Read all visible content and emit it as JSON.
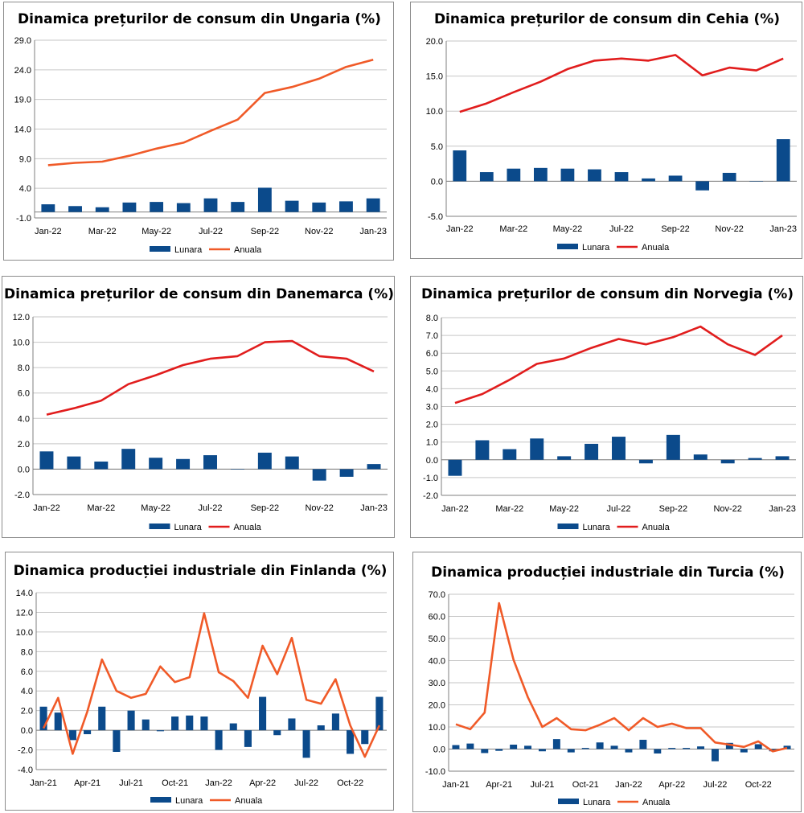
{
  "chart_data": [
    {
      "type": "bar+line",
      "title": "Dinamica prețurilor de consum din Ungaria (%)",
      "legend": [
        "Lunara",
        "Anuala"
      ],
      "legend_position": "bottom",
      "colors": {
        "bar": "#0b4a8b",
        "line": "#f05a28"
      },
      "ylim": [
        -1.0,
        29.0
      ],
      "yticks": [
        -1.0,
        4.0,
        9.0,
        14.0,
        19.0,
        24.0,
        29.0
      ],
      "ytick_labels": [
        "-1.0",
        "4.0",
        "9.0",
        "14.0",
        "19.0",
        "24.0",
        "29.0"
      ],
      "categories": [
        "Jan-22",
        "Feb-22",
        "Mar-22",
        "Apr-22",
        "May-22",
        "Jun-22",
        "Jul-22",
        "Aug-22",
        "Sep-22",
        "Oct-22",
        "Nov-22",
        "Dec-22",
        "Jan-23"
      ],
      "xtick_labels": [
        "Jan-22",
        "",
        "Mar-22",
        "",
        "May-22",
        "",
        "Jul-22",
        "",
        "Sep-22",
        "",
        "Nov-22",
        "",
        "Jan-23"
      ],
      "series": [
        {
          "name": "Lunara",
          "kind": "bar",
          "values": [
            1.3,
            1.0,
            0.8,
            1.6,
            1.7,
            1.5,
            2.3,
            1.7,
            4.1,
            1.9,
            1.6,
            1.8,
            2.3
          ]
        },
        {
          "name": "Anuala",
          "kind": "line",
          "values": [
            7.9,
            8.3,
            8.5,
            9.5,
            10.7,
            11.7,
            13.7,
            15.6,
            20.1,
            21.1,
            22.5,
            24.5,
            25.7
          ]
        }
      ]
    },
    {
      "type": "bar+line",
      "title": "Dinamica prețurilor de consum din Cehia (%)",
      "legend": [
        "Lunara",
        "Anuala"
      ],
      "legend_position": "bottom",
      "colors": {
        "bar": "#0b4a8b",
        "line": "#e11d1d"
      },
      "ylim": [
        -5.0,
        20.0
      ],
      "yticks": [
        -5.0,
        0.0,
        5.0,
        10.0,
        15.0,
        20.0
      ],
      "ytick_labels": [
        "-5.0",
        "0.0",
        "5.0",
        "10.0",
        "15.0",
        "20.0"
      ],
      "categories": [
        "Jan-22",
        "Feb-22",
        "Mar-22",
        "Apr-22",
        "May-22",
        "Jun-22",
        "Jul-22",
        "Aug-22",
        "Sep-22",
        "Oct-22",
        "Nov-22",
        "Dec-22",
        "Jan-23"
      ],
      "xtick_labels": [
        "Jan-22",
        "",
        "Mar-22",
        "",
        "May-22",
        "",
        "Jul-22",
        "",
        "Sep-22",
        "",
        "Nov-22",
        "",
        "Jan-23"
      ],
      "series": [
        {
          "name": "Lunara",
          "kind": "bar",
          "values": [
            4.4,
            1.3,
            1.8,
            1.9,
            1.8,
            1.7,
            1.3,
            0.4,
            0.8,
            -1.3,
            1.2,
            0.0,
            6.0
          ]
        },
        {
          "name": "Anuala",
          "kind": "line",
          "values": [
            9.9,
            11.1,
            12.7,
            14.2,
            16.0,
            17.2,
            17.5,
            17.2,
            18.0,
            15.1,
            16.2,
            15.8,
            17.5
          ]
        }
      ]
    },
    {
      "type": "bar+line",
      "title": "Dinamica prețurilor de consum din Danemarca (%)",
      "legend": [
        "Lunara",
        "Anuala"
      ],
      "legend_position": "bottom",
      "colors": {
        "bar": "#0b4a8b",
        "line": "#e11d1d"
      },
      "ylim": [
        -2.0,
        12.0
      ],
      "yticks": [
        -2.0,
        0.0,
        2.0,
        4.0,
        6.0,
        8.0,
        10.0,
        12.0
      ],
      "ytick_labels": [
        "-2.0",
        "0.0",
        "2.0",
        "4.0",
        "6.0",
        "8.0",
        "10.0",
        "12.0"
      ],
      "categories": [
        "Jan-22",
        "Feb-22",
        "Mar-22",
        "Apr-22",
        "May-22",
        "Jun-22",
        "Jul-22",
        "Aug-22",
        "Sep-22",
        "Oct-22",
        "Nov-22",
        "Dec-22",
        "Jan-23"
      ],
      "xtick_labels": [
        "Jan-22",
        "",
        "Mar-22",
        "",
        "May-22",
        "",
        "Jul-22",
        "",
        "Sep-22",
        "",
        "Nov-22",
        "",
        "Jan-23"
      ],
      "series": [
        {
          "name": "Lunara",
          "kind": "bar",
          "values": [
            1.4,
            1.0,
            0.6,
            1.6,
            0.9,
            0.8,
            1.1,
            0.0,
            1.3,
            1.0,
            -0.9,
            -0.6,
            0.4
          ]
        },
        {
          "name": "Anuala",
          "kind": "line",
          "values": [
            4.3,
            4.8,
            5.4,
            6.7,
            7.4,
            8.2,
            8.7,
            8.9,
            10.0,
            10.1,
            8.9,
            8.7,
            7.7
          ]
        }
      ]
    },
    {
      "type": "bar+line",
      "title": "Dinamica prețurilor de consum din Norvegia (%)",
      "legend": [
        "Lunara",
        "Anuala"
      ],
      "legend_position": "bottom",
      "colors": {
        "bar": "#0b4a8b",
        "line": "#e11d1d"
      },
      "ylim": [
        -2.0,
        8.0
      ],
      "yticks": [
        -2.0,
        -1.0,
        0.0,
        1.0,
        2.0,
        3.0,
        4.0,
        5.0,
        6.0,
        7.0,
        8.0
      ],
      "ytick_labels": [
        "-2.0",
        "-1.0",
        "0.0",
        "1.0",
        "2.0",
        "3.0",
        "4.0",
        "5.0",
        "6.0",
        "7.0",
        "8.0"
      ],
      "categories": [
        "Jan-22",
        "Feb-22",
        "Mar-22",
        "Apr-22",
        "May-22",
        "Jun-22",
        "Jul-22",
        "Aug-22",
        "Sep-22",
        "Oct-22",
        "Nov-22",
        "Dec-22",
        "Jan-23"
      ],
      "xtick_labels": [
        "Jan-22",
        "",
        "Mar-22",
        "",
        "May-22",
        "",
        "Jul-22",
        "",
        "Sep-22",
        "",
        "Nov-22",
        "",
        "Jan-23"
      ],
      "series": [
        {
          "name": "Lunara",
          "kind": "bar",
          "values": [
            -0.9,
            1.1,
            0.6,
            1.2,
            0.2,
            0.9,
            1.3,
            -0.2,
            1.4,
            0.3,
            -0.2,
            0.1,
            0.2
          ]
        },
        {
          "name": "Anuala",
          "kind": "line",
          "values": [
            3.2,
            3.7,
            4.5,
            5.4,
            5.7,
            6.3,
            6.8,
            6.5,
            6.9,
            7.5,
            6.5,
            5.9,
            7.0
          ]
        }
      ]
    },
    {
      "type": "bar+line",
      "title": "Dinamica producției industriale din Finlanda (%)",
      "legend": [
        "Lunara",
        "Anuala"
      ],
      "legend_position": "bottom",
      "colors": {
        "bar": "#0b4a8b",
        "line": "#f05a28"
      },
      "ylim": [
        -4.0,
        14.0
      ],
      "yticks": [
        -4.0,
        -2.0,
        0.0,
        2.0,
        4.0,
        6.0,
        8.0,
        10.0,
        12.0,
        14.0
      ],
      "ytick_labels": [
        "-4.0",
        "-2.0",
        "0.0",
        "2.0",
        "4.0",
        "6.0",
        "8.0",
        "10.0",
        "12.0",
        "14.0"
      ],
      "categories": [
        "Jan-21",
        "Feb-21",
        "Mar-21",
        "Apr-21",
        "May-21",
        "Jun-21",
        "Jul-21",
        "Aug-21",
        "Sep-21",
        "Oct-21",
        "Nov-21",
        "Dec-21",
        "Jan-22",
        "Feb-22",
        "Mar-22",
        "Apr-22",
        "May-22",
        "Jun-22",
        "Jul-22",
        "Aug-22",
        "Sep-22",
        "Oct-22",
        "Nov-22",
        "Dec-22"
      ],
      "xtick_labels": [
        "Jan-21",
        "",
        "",
        "Apr-21",
        "",
        "",
        "Jul-21",
        "",
        "",
        "Oct-21",
        "",
        "",
        "Jan-22",
        "",
        "",
        "Apr-22",
        "",
        "",
        "Jul-22",
        "",
        "",
        "Oct-22",
        "",
        ""
      ],
      "series": [
        {
          "name": "Lunara",
          "kind": "bar",
          "values": [
            2.4,
            1.8,
            -1.0,
            -0.4,
            2.4,
            -2.2,
            2.0,
            1.1,
            -0.1,
            1.4,
            1.5,
            1.4,
            -2.0,
            0.7,
            -1.7,
            3.4,
            -0.5,
            1.2,
            -2.8,
            0.5,
            1.7,
            -2.4,
            -1.4,
            3.4
          ]
        },
        {
          "name": "Anuala",
          "kind": "line",
          "values": [
            0.2,
            3.3,
            -2.4,
            1.9,
            7.2,
            4.0,
            3.3,
            3.7,
            6.5,
            4.9,
            5.4,
            11.9,
            5.9,
            5.0,
            3.3,
            8.6,
            5.7,
            9.4,
            3.1,
            2.7,
            5.2,
            0.5,
            -2.7,
            0.5
          ]
        }
      ]
    },
    {
      "type": "bar+line",
      "title": "Dinamica producției industriale din Turcia (%)",
      "legend": [
        "Lunara",
        "Anuala"
      ],
      "legend_position": "bottom",
      "colors": {
        "bar": "#0b4a8b",
        "line": "#f05a28"
      },
      "ylim": [
        -10.0,
        70.0
      ],
      "yticks": [
        -10.0,
        0.0,
        10.0,
        20.0,
        30.0,
        40.0,
        50.0,
        60.0,
        70.0
      ],
      "ytick_labels": [
        "-10.0",
        "0.0",
        "10.0",
        "20.0",
        "30.0",
        "40.0",
        "50.0",
        "60.0",
        "70.0"
      ],
      "categories": [
        "Jan-21",
        "Feb-21",
        "Mar-21",
        "Apr-21",
        "May-21",
        "Jun-21",
        "Jul-21",
        "Aug-21",
        "Sep-21",
        "Oct-21",
        "Nov-21",
        "Dec-21",
        "Jan-22",
        "Feb-22",
        "Mar-22",
        "Apr-22",
        "May-22",
        "Jun-22",
        "Jul-22",
        "Aug-22",
        "Sep-22",
        "Oct-22",
        "Nov-22",
        "Dec-22"
      ],
      "xtick_labels": [
        "Jan-21",
        "",
        "",
        "Apr-21",
        "",
        "",
        "Jul-21",
        "",
        "",
        "Oct-21",
        "",
        "",
        "Jan-22",
        "",
        "",
        "Apr-22",
        "",
        "",
        "Jul-22",
        "",
        "",
        "Oct-22",
        "",
        ""
      ],
      "series": [
        {
          "name": "Lunara",
          "kind": "bar",
          "values": [
            1.8,
            2.5,
            -1.8,
            -0.8,
            2.0,
            1.5,
            -1.0,
            4.5,
            -1.5,
            0.5,
            3.0,
            1.5,
            -1.5,
            4.2,
            -2.0,
            0.5,
            0.5,
            1.2,
            -5.5,
            2.8,
            -1.5,
            2.2,
            -1.0,
            1.5
          ]
        },
        {
          "name": "Anuala",
          "kind": "line",
          "values": [
            11.2,
            9.0,
            16.5,
            66.0,
            40.5,
            23.5,
            10.0,
            14.0,
            9.0,
            8.5,
            11.0,
            14.0,
            8.5,
            14.0,
            10.0,
            11.5,
            9.5,
            9.5,
            3.0,
            2.0,
            1.0,
            3.5,
            -1.0,
            0.5
          ]
        }
      ]
    }
  ]
}
